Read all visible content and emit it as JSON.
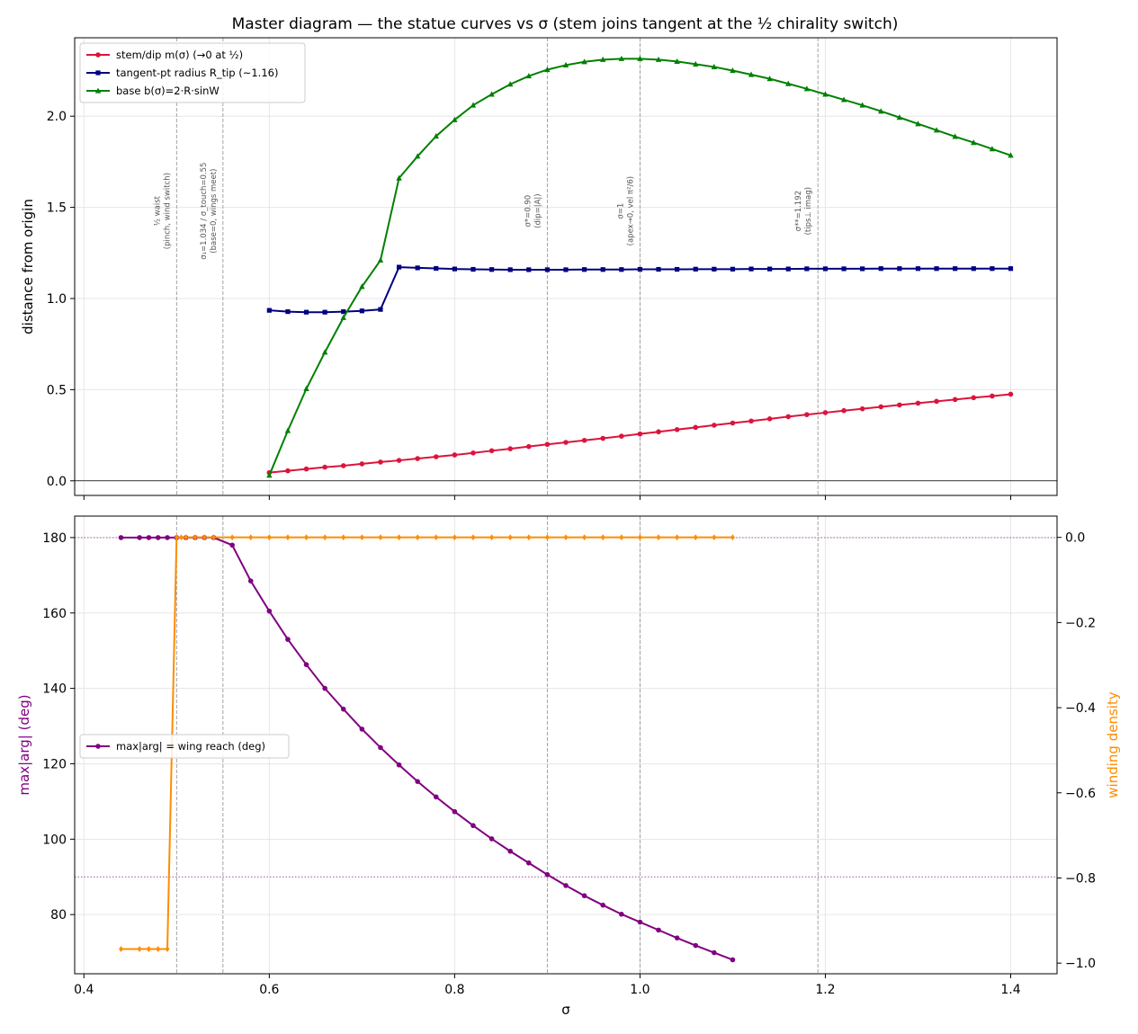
{
  "title": "Master diagram — the statue curves vs σ (stem joins tangent at the ½ chirality switch)",
  "colors": {
    "stem": "#dc143c",
    "tip": "#000080",
    "base": "#008000",
    "wing": "#800080",
    "winding": "#ff8c00",
    "vline": "#999999",
    "grid": "#e6e6e6"
  },
  "chart_data": [
    {
      "type": "line",
      "panel": "top",
      "xlabel": "",
      "ylabel": "distance from origin",
      "xlim": [
        0.39,
        1.45
      ],
      "ylim": [
        -0.08,
        2.43
      ],
      "x_ticks": [
        0.4,
        0.6,
        0.8,
        1.0,
        1.2,
        1.4
      ],
      "y_ticks": [
        0.0,
        0.5,
        1.0,
        1.5,
        2.0
      ],
      "y_tick_labels": [
        "0.0",
        "0.5",
        "1.0",
        "1.5",
        "2.0"
      ],
      "grid": true,
      "legend_position": "top-left",
      "hline": 0.0,
      "vlines": [
        {
          "x": 0.5,
          "label": [
            "½ waist",
            "(pinch, wind switch)"
          ],
          "label_y": 1.48
        },
        {
          "x": 0.55,
          "label": [
            "σ₁=1.034 / σ_touch=0.55",
            "(base=0, wings meet)"
          ],
          "label_y": 1.48
        },
        {
          "x": 0.9,
          "label": [
            "σ*=0.90",
            "(dip=|A|)"
          ],
          "label_y": 1.48
        },
        {
          "x": 1.0,
          "label": [
            "σ=1",
            "(apex→0, vel π²/6)"
          ],
          "label_y": 1.48
        },
        {
          "x": 1.192,
          "label": [
            "σ**=1.192",
            "(tips⊥ imag)"
          ],
          "label_y": 1.48
        }
      ],
      "series": [
        {
          "name": "stem/dip m(σ) (→0 at ½)",
          "color": "#dc143c",
          "marker": "circle",
          "x": [
            0.6,
            0.62,
            0.64,
            0.66,
            0.68,
            0.7,
            0.72,
            0.74,
            0.76,
            0.78,
            0.8,
            0.82,
            0.84,
            0.86,
            0.88,
            0.9,
            0.92,
            0.94,
            0.96,
            0.98,
            1.0,
            1.02,
            1.04,
            1.06,
            1.08,
            1.1,
            1.12,
            1.14,
            1.16,
            1.18,
            1.2,
            1.22,
            1.24,
            1.26,
            1.28,
            1.3,
            1.32,
            1.34,
            1.36,
            1.38,
            1.4
          ],
          "y": [
            0.045,
            0.055,
            0.065,
            0.075,
            0.083,
            0.093,
            0.103,
            0.112,
            0.122,
            0.132,
            0.142,
            0.153,
            0.165,
            0.176,
            0.188,
            0.2,
            0.211,
            0.222,
            0.233,
            0.245,
            0.257,
            0.269,
            0.281,
            0.293,
            0.305,
            0.317,
            0.328,
            0.34,
            0.352,
            0.363,
            0.374,
            0.385,
            0.395,
            0.406,
            0.416,
            0.426,
            0.436,
            0.446,
            0.456,
            0.465,
            0.475
          ]
        },
        {
          "name": "tangent-pt radius R_tip (~1.16)",
          "color": "#000080",
          "marker": "square",
          "x": [
            0.6,
            0.62,
            0.64,
            0.66,
            0.68,
            0.7,
            0.72,
            0.74,
            0.76,
            0.78,
            0.8,
            0.82,
            0.84,
            0.86,
            0.88,
            0.9,
            0.92,
            0.94,
            0.96,
            0.98,
            1.0,
            1.02,
            1.04,
            1.06,
            1.08,
            1.1,
            1.12,
            1.14,
            1.16,
            1.18,
            1.2,
            1.22,
            1.24,
            1.26,
            1.28,
            1.3,
            1.32,
            1.34,
            1.36,
            1.38,
            1.4
          ],
          "y": [
            0.935,
            0.928,
            0.925,
            0.925,
            0.928,
            0.932,
            0.94,
            1.172,
            1.168,
            1.165,
            1.162,
            1.16,
            1.159,
            1.158,
            1.158,
            1.158,
            1.158,
            1.159,
            1.159,
            1.159,
            1.16,
            1.16,
            1.16,
            1.161,
            1.161,
            1.161,
            1.162,
            1.162,
            1.162,
            1.163,
            1.163,
            1.163,
            1.163,
            1.164,
            1.164,
            1.164,
            1.164,
            1.164,
            1.164,
            1.164,
            1.164
          ]
        },
        {
          "name": "base b(σ)=2·R·sinW",
          "color": "#008000",
          "marker": "triangle",
          "x": [
            0.6,
            0.62,
            0.64,
            0.66,
            0.68,
            0.7,
            0.72,
            0.74,
            0.76,
            0.78,
            0.8,
            0.82,
            0.84,
            0.86,
            0.88,
            0.9,
            0.92,
            0.94,
            0.96,
            0.98,
            1.0,
            1.02,
            1.04,
            1.06,
            1.08,
            1.1,
            1.12,
            1.14,
            1.16,
            1.18,
            1.2,
            1.22,
            1.24,
            1.26,
            1.28,
            1.3,
            1.32,
            1.34,
            1.36,
            1.38,
            1.4
          ],
          "y": [
            0.03,
            0.275,
            0.505,
            0.705,
            0.895,
            1.065,
            1.21,
            1.66,
            1.78,
            1.89,
            1.98,
            2.06,
            2.12,
            2.175,
            2.22,
            2.255,
            2.28,
            2.298,
            2.31,
            2.315,
            2.315,
            2.31,
            2.3,
            2.285,
            2.27,
            2.25,
            2.228,
            2.205,
            2.178,
            2.15,
            2.12,
            2.09,
            2.06,
            2.027,
            1.993,
            1.958,
            1.923,
            1.888,
            1.855,
            1.82,
            1.785
          ]
        }
      ]
    },
    {
      "type": "line",
      "panel": "bottom",
      "xlabel": "σ",
      "ylabel": "max|arg| (deg)",
      "ylabel_right": "winding density",
      "xlim": [
        0.39,
        1.45
      ],
      "ylim": [
        64.3,
        185.7
      ],
      "ylim_right": [
        -1.025,
        0.05
      ],
      "x_ticks": [
        0.4,
        0.6,
        0.8,
        1.0,
        1.2,
        1.4
      ],
      "x_tick_labels": [
        "0.4",
        "0.6",
        "0.8",
        "1.0",
        "1.2",
        "1.4"
      ],
      "y_ticks": [
        80,
        100,
        120,
        140,
        160,
        180
      ],
      "y_tick_labels": [
        "80",
        "100",
        "120",
        "140",
        "160",
        "180"
      ],
      "y_ticks_right": [
        0.0,
        -0.2,
        -0.4,
        -0.6,
        -0.8,
        -1.0
      ],
      "y_tick_labels_right": [
        "0.0",
        "−0.2",
        "−0.4",
        "−0.6",
        "−0.8",
        "−1.0"
      ],
      "grid": true,
      "legend_position": "center-left",
      "hlines_dotted": [
        180,
        90
      ],
      "vlines": [
        0.5,
        0.55,
        0.9,
        1.0,
        1.192
      ],
      "series": [
        {
          "name": "max|arg| = wing reach (deg)",
          "color": "#800080",
          "marker": "circle",
          "axis": "left",
          "x": [
            0.44,
            0.46,
            0.47,
            0.48,
            0.49,
            0.5,
            0.51,
            0.52,
            0.53,
            0.54,
            0.56,
            0.58,
            0.6,
            0.62,
            0.64,
            0.66,
            0.68,
            0.7,
            0.72,
            0.74,
            0.76,
            0.78,
            0.8,
            0.82,
            0.84,
            0.86,
            0.88,
            0.9,
            0.92,
            0.94,
            0.96,
            0.98,
            1.0,
            1.02,
            1.04,
            1.06,
            1.08,
            1.1
          ],
          "y": [
            180,
            180,
            180,
            180,
            180,
            180,
            180,
            180,
            180,
            180,
            178,
            168.5,
            160.5,
            153,
            146.3,
            140,
            134.5,
            129.2,
            124.3,
            119.7,
            115.3,
            111.2,
            107.3,
            103.6,
            100.1,
            96.8,
            93.7,
            90.6,
            87.7,
            85,
            82.5,
            80.1,
            78,
            75.9,
            73.8,
            71.8,
            69.9,
            68
          ]
        },
        {
          "name": "winding density",
          "color": "#ff8c00",
          "marker": "diamond",
          "axis": "right",
          "x": [
            0.44,
            0.46,
            0.47,
            0.48,
            0.49,
            0.5,
            0.505,
            0.51,
            0.52,
            0.53,
            0.54,
            0.56,
            0.58,
            0.6,
            0.62,
            0.64,
            0.66,
            0.68,
            0.7,
            0.72,
            0.74,
            0.76,
            0.78,
            0.8,
            0.82,
            0.84,
            0.86,
            0.88,
            0.9,
            0.92,
            0.94,
            0.96,
            0.98,
            1.0,
            1.02,
            1.04,
            1.06,
            1.08,
            1.1
          ],
          "y": [
            -0.967,
            -0.967,
            -0.967,
            -0.967,
            -0.967,
            0,
            0,
            0,
            0,
            0,
            0,
            0,
            0,
            0,
            0,
            0,
            0,
            0,
            0,
            0,
            0,
            0,
            0,
            0,
            0,
            0,
            0,
            0,
            0,
            0,
            0,
            0,
            0,
            0,
            0,
            0,
            0,
            0,
            0
          ]
        }
      ]
    }
  ]
}
